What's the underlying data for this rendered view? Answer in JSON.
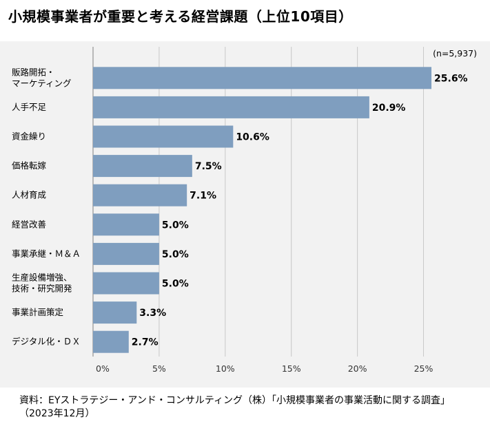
{
  "chart_data": {
    "type": "bar",
    "orientation": "horizontal",
    "title": "小規模事業者が重要と考える経営課題（上位10項目）",
    "note": "(n=5,937)",
    "categories": [
      [
        "販路開拓・",
        "マーケティング"
      ],
      [
        "人手不足"
      ],
      [
        "資金繰り"
      ],
      [
        "価格転嫁"
      ],
      [
        "人材育成"
      ],
      [
        "経営改善"
      ],
      [
        "事業承継・Ｍ＆Ａ"
      ],
      [
        "生産設備増強、",
        "技術・研究開発"
      ],
      [
        "事業計画策定"
      ],
      [
        "デジタル化・ＤＸ"
      ]
    ],
    "values": [
      25.6,
      20.9,
      10.6,
      7.5,
      7.1,
      5.0,
      5.0,
      5.0,
      3.3,
      2.7
    ],
    "value_labels": [
      "25.6%",
      "20.9%",
      "10.6%",
      "7.5%",
      "7.1%",
      "5.0%",
      "5.0%",
      "5.0%",
      "3.3%",
      "2.7%"
    ],
    "xticks": [
      0,
      5,
      10,
      15,
      20,
      25
    ],
    "xtick_labels": [
      "0%",
      "5%",
      "10%",
      "15%",
      "20%",
      "25%"
    ],
    "xlim": [
      0,
      29.3
    ],
    "bar_color": "#7f9ebf",
    "grid": true
  },
  "source": {
    "line1": "資料：EYストラテジー・アンド・コンサルティング（株）「小規模事業者の事業活動に関する調査」",
    "line2": "（2023年12月）"
  }
}
